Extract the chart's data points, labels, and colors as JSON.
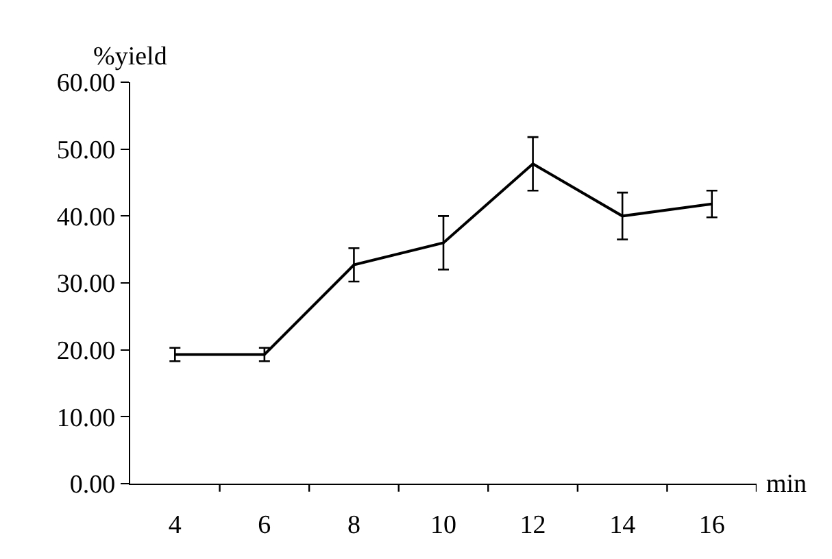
{
  "chart_data": {
    "type": "line",
    "xlabel": "min",
    "ylabel": "%yield",
    "categories": [
      "4",
      "6",
      "8",
      "10",
      "12",
      "14",
      "16"
    ],
    "series": [
      {
        "color": "#000000",
        "values": [
          19.3,
          19.3,
          32.7,
          36,
          47.8,
          40,
          41.8
        ],
        "errors": [
          1,
          1,
          2.5,
          4,
          4,
          3.5,
          2
        ]
      }
    ],
    "ylim": [
      0,
      60
    ],
    "yticks": [
      {
        "value": 0,
        "label": "0.00"
      },
      {
        "value": 10,
        "label": "10.00"
      },
      {
        "value": 20,
        "label": "20.00"
      },
      {
        "value": 30,
        "label": "30.00"
      },
      {
        "value": 40,
        "label": "40.00"
      },
      {
        "value": 50,
        "label": "50.00"
      },
      {
        "value": 60,
        "label": "60.00"
      }
    ],
    "grid": false,
    "marker": "none",
    "line_style": "solid"
  }
}
